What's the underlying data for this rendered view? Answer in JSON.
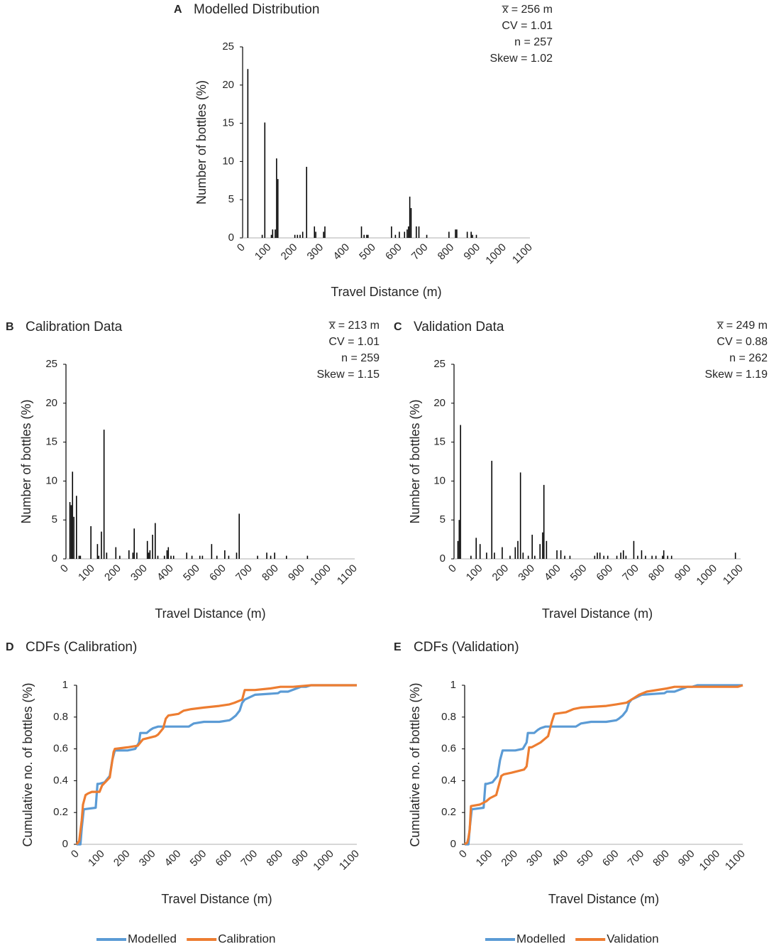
{
  "chart_data": [
    {
      "id": "A",
      "type": "bar",
      "panel_letter": "A",
      "title": "Modelled Distribution",
      "stats": [
        "x̅ = 256 m",
        "CV = 1.01",
        "n = 257",
        "Skew = 1.02"
      ],
      "xlabel": "Travel Distance (m)",
      "ylabel": "Number of bottles (%)",
      "xlim": [
        0,
        1100
      ],
      "ylim": [
        0,
        25
      ],
      "xticks": [
        "0",
        "100",
        "200",
        "300",
        "400",
        "500",
        "600",
        "700",
        "800",
        "900",
        "1000",
        "1100"
      ],
      "yticks": [
        "0",
        "5",
        "10",
        "15",
        "20",
        "25"
      ],
      "bars": [
        {
          "x": 20,
          "y": 22.1
        },
        {
          "x": 75,
          "y": 0.4
        },
        {
          "x": 85,
          "y": 15.1
        },
        {
          "x": 110,
          "y": 0.4
        },
        {
          "x": 115,
          "y": 1.1
        },
        {
          "x": 125,
          "y": 1.1
        },
        {
          "x": 130,
          "y": 10.4
        },
        {
          "x": 135,
          "y": 7.7
        },
        {
          "x": 200,
          "y": 0.4
        },
        {
          "x": 210,
          "y": 0.4
        },
        {
          "x": 220,
          "y": 0.4
        },
        {
          "x": 230,
          "y": 0.8
        },
        {
          "x": 245,
          "y": 9.3
        },
        {
          "x": 275,
          "y": 1.5
        },
        {
          "x": 280,
          "y": 0.8
        },
        {
          "x": 310,
          "y": 0.8
        },
        {
          "x": 315,
          "y": 1.5
        },
        {
          "x": 455,
          "y": 1.5
        },
        {
          "x": 465,
          "y": 0.4
        },
        {
          "x": 475,
          "y": 0.4
        },
        {
          "x": 480,
          "y": 0.4
        },
        {
          "x": 570,
          "y": 1.5
        },
        {
          "x": 585,
          "y": 0.4
        },
        {
          "x": 600,
          "y": 0.8
        },
        {
          "x": 620,
          "y": 0.8
        },
        {
          "x": 630,
          "y": 1.1
        },
        {
          "x": 635,
          "y": 1.5
        },
        {
          "x": 640,
          "y": 5.4
        },
        {
          "x": 645,
          "y": 3.9
        },
        {
          "x": 665,
          "y": 1.5
        },
        {
          "x": 675,
          "y": 1.5
        },
        {
          "x": 705,
          "y": 0.4
        },
        {
          "x": 790,
          "y": 0.8
        },
        {
          "x": 815,
          "y": 1.1
        },
        {
          "x": 820,
          "y": 1.1
        },
        {
          "x": 860,
          "y": 0.8
        },
        {
          "x": 875,
          "y": 0.8
        },
        {
          "x": 880,
          "y": 0.4
        },
        {
          "x": 895,
          "y": 0.4
        }
      ]
    },
    {
      "id": "B",
      "type": "bar",
      "panel_letter": "B",
      "title": "Calibration Data",
      "stats": [
        "x̅ = 213 m",
        "CV = 1.01",
        "n = 259",
        "Skew = 1.15"
      ],
      "xlabel": "Travel Distance (m)",
      "ylabel": "Number of bottles (%)",
      "xlim": [
        0,
        1100
      ],
      "ylim": [
        0,
        25
      ],
      "xticks": [
        "0",
        "100",
        "200",
        "300",
        "400",
        "500",
        "600",
        "700",
        "800",
        "900",
        "1000",
        "1100"
      ],
      "yticks": [
        "0",
        "5",
        "10",
        "15",
        "20",
        "25"
      ],
      "bars": [
        {
          "x": 15,
          "y": 7.3
        },
        {
          "x": 20,
          "y": 6.9
        },
        {
          "x": 25,
          "y": 11.2
        },
        {
          "x": 30,
          "y": 5.4
        },
        {
          "x": 40,
          "y": 8.1
        },
        {
          "x": 50,
          "y": 0.4
        },
        {
          "x": 55,
          "y": 0.4
        },
        {
          "x": 95,
          "y": 4.2
        },
        {
          "x": 120,
          "y": 1.9
        },
        {
          "x": 125,
          "y": 0.4
        },
        {
          "x": 135,
          "y": 3.5
        },
        {
          "x": 145,
          "y": 16.6
        },
        {
          "x": 155,
          "y": 0.8
        },
        {
          "x": 190,
          "y": 1.5
        },
        {
          "x": 205,
          "y": 0.4
        },
        {
          "x": 240,
          "y": 1.1
        },
        {
          "x": 255,
          "y": 0.8
        },
        {
          "x": 260,
          "y": 3.9
        },
        {
          "x": 270,
          "y": 0.8
        },
        {
          "x": 310,
          "y": 2.3
        },
        {
          "x": 315,
          "y": 0.8
        },
        {
          "x": 320,
          "y": 1.1
        },
        {
          "x": 330,
          "y": 3.1
        },
        {
          "x": 340,
          "y": 4.6
        },
        {
          "x": 350,
          "y": 0.4
        },
        {
          "x": 375,
          "y": 0.4
        },
        {
          "x": 385,
          "y": 1.1
        },
        {
          "x": 390,
          "y": 1.5
        },
        {
          "x": 400,
          "y": 0.4
        },
        {
          "x": 410,
          "y": 0.4
        },
        {
          "x": 460,
          "y": 0.8
        },
        {
          "x": 480,
          "y": 0.4
        },
        {
          "x": 510,
          "y": 0.4
        },
        {
          "x": 520,
          "y": 0.4
        },
        {
          "x": 555,
          "y": 1.9
        },
        {
          "x": 575,
          "y": 0.4
        },
        {
          "x": 605,
          "y": 1.1
        },
        {
          "x": 620,
          "y": 0.4
        },
        {
          "x": 650,
          "y": 0.8
        },
        {
          "x": 660,
          "y": 5.8
        },
        {
          "x": 730,
          "y": 0.4
        },
        {
          "x": 765,
          "y": 0.8
        },
        {
          "x": 780,
          "y": 0.4
        },
        {
          "x": 795,
          "y": 0.8
        },
        {
          "x": 840,
          "y": 0.4
        },
        {
          "x": 920,
          "y": 0.4
        }
      ]
    },
    {
      "id": "C",
      "type": "bar",
      "panel_letter": "C",
      "title": "Validation Data",
      "stats": [
        "x̅ = 249 m",
        "CV = 0.88",
        "n = 262",
        "Skew = 1.19"
      ],
      "xlabel": "Travel Distance (m)",
      "ylabel": "Number of bottles (%)",
      "xlim": [
        0,
        1100
      ],
      "ylim": [
        0,
        25
      ],
      "xticks": [
        "0",
        "100",
        "200",
        "300",
        "400",
        "500",
        "600",
        "700",
        "800",
        "900",
        "1000",
        "1100"
      ],
      "yticks": [
        "0",
        "5",
        "10",
        "15",
        "20",
        "25"
      ],
      "bars": [
        {
          "x": 15,
          "y": 2.3
        },
        {
          "x": 20,
          "y": 5.0
        },
        {
          "x": 25,
          "y": 17.2
        },
        {
          "x": 65,
          "y": 0.4
        },
        {
          "x": 85,
          "y": 2.7
        },
        {
          "x": 100,
          "y": 1.9
        },
        {
          "x": 125,
          "y": 0.8
        },
        {
          "x": 145,
          "y": 12.6
        },
        {
          "x": 155,
          "y": 0.8
        },
        {
          "x": 185,
          "y": 1.5
        },
        {
          "x": 215,
          "y": 0.4
        },
        {
          "x": 235,
          "y": 1.5
        },
        {
          "x": 245,
          "y": 2.3
        },
        {
          "x": 255,
          "y": 11.1
        },
        {
          "x": 265,
          "y": 0.8
        },
        {
          "x": 285,
          "y": 0.4
        },
        {
          "x": 300,
          "y": 3.1
        },
        {
          "x": 310,
          "y": 0.4
        },
        {
          "x": 330,
          "y": 1.9
        },
        {
          "x": 340,
          "y": 3.4
        },
        {
          "x": 345,
          "y": 9.5
        },
        {
          "x": 355,
          "y": 2.3
        },
        {
          "x": 395,
          "y": 1.1
        },
        {
          "x": 410,
          "y": 1.1
        },
        {
          "x": 425,
          "y": 0.4
        },
        {
          "x": 445,
          "y": 0.4
        },
        {
          "x": 540,
          "y": 0.4
        },
        {
          "x": 550,
          "y": 0.8
        },
        {
          "x": 560,
          "y": 0.8
        },
        {
          "x": 575,
          "y": 0.4
        },
        {
          "x": 590,
          "y": 0.4
        },
        {
          "x": 625,
          "y": 0.4
        },
        {
          "x": 640,
          "y": 0.8
        },
        {
          "x": 650,
          "y": 1.1
        },
        {
          "x": 660,
          "y": 0.4
        },
        {
          "x": 690,
          "y": 2.3
        },
        {
          "x": 705,
          "y": 0.4
        },
        {
          "x": 720,
          "y": 1.1
        },
        {
          "x": 735,
          "y": 0.4
        },
        {
          "x": 760,
          "y": 0.4
        },
        {
          "x": 775,
          "y": 0.4
        },
        {
          "x": 800,
          "y": 0.4
        },
        {
          "x": 805,
          "y": 1.1
        },
        {
          "x": 820,
          "y": 0.4
        },
        {
          "x": 835,
          "y": 0.4
        },
        {
          "x": 1080,
          "y": 0.8
        }
      ]
    },
    {
      "id": "D",
      "type": "line",
      "panel_letter": "D",
      "title": "CDFs (Calibration)",
      "xlabel": "Travel Distance (m)",
      "ylabel": "Cumulative no. of bottles (%)",
      "xlim": [
        0,
        1100
      ],
      "ylim": [
        0,
        1
      ],
      "xticks": [
        "0",
        "100",
        "200",
        "300",
        "400",
        "500",
        "600",
        "700",
        "800",
        "900",
        "1000",
        "1100"
      ],
      "yticks": [
        "0",
        "0.2",
        "0.4",
        "0.6",
        "0.8",
        "1"
      ],
      "series": [
        {
          "name": "Modelled",
          "color": "#5b9bd5",
          "x": [
            0,
            15,
            20,
            28,
            75,
            82,
            88,
            110,
            130,
            140,
            150,
            200,
            230,
            245,
            250,
            275,
            290,
            300,
            320,
            350,
            440,
            460,
            500,
            560,
            600,
            610,
            625,
            640,
            650,
            660,
            700,
            790,
            800,
            830,
            880,
            900,
            920,
            1100
          ],
          "y": [
            0,
            0,
            0.1,
            0.22,
            0.23,
            0.38,
            0.38,
            0.39,
            0.43,
            0.53,
            0.59,
            0.59,
            0.6,
            0.64,
            0.7,
            0.7,
            0.72,
            0.73,
            0.74,
            0.74,
            0.74,
            0.76,
            0.77,
            0.77,
            0.78,
            0.79,
            0.81,
            0.84,
            0.89,
            0.91,
            0.94,
            0.95,
            0.96,
            0.96,
            0.99,
            0.99,
            1.0,
            1.0
          ]
        },
        {
          "name": "Calibration",
          "color": "#ed7d31",
          "x": [
            0,
            10,
            20,
            25,
            35,
            45,
            60,
            90,
            100,
            130,
            145,
            150,
            200,
            240,
            260,
            310,
            320,
            340,
            350,
            360,
            400,
            420,
            450,
            500,
            560,
            600,
            620,
            650,
            660,
            700,
            760,
            800,
            850,
            920,
            1000,
            1100
          ],
          "y": [
            0,
            0.02,
            0.15,
            0.25,
            0.31,
            0.32,
            0.33,
            0.33,
            0.37,
            0.42,
            0.58,
            0.6,
            0.61,
            0.62,
            0.66,
            0.68,
            0.69,
            0.73,
            0.79,
            0.81,
            0.82,
            0.84,
            0.85,
            0.86,
            0.87,
            0.88,
            0.89,
            0.91,
            0.97,
            0.97,
            0.98,
            0.99,
            0.99,
            1.0,
            1.0,
            1.0
          ]
        }
      ],
      "legend": [
        "Modelled",
        "Calibration"
      ],
      "legend_position": "bottom"
    },
    {
      "id": "E",
      "type": "line",
      "panel_letter": "E",
      "title": "CDFs (Validation)",
      "xlabel": "Travel Distance (m)",
      "ylabel": "Cumulative no. of bottles (%)",
      "xlim": [
        0,
        1100
      ],
      "ylim": [
        0,
        1
      ],
      "xticks": [
        "0",
        "100",
        "200",
        "300",
        "400",
        "500",
        "600",
        "700",
        "800",
        "900",
        "1000",
        "1100"
      ],
      "yticks": [
        "0",
        "0.2",
        "0.4",
        "0.6",
        "0.8",
        "1"
      ],
      "series": [
        {
          "name": "Modelled",
          "color": "#5b9bd5",
          "x": [
            0,
            15,
            20,
            28,
            75,
            82,
            88,
            110,
            130,
            140,
            150,
            200,
            230,
            245,
            250,
            275,
            290,
            300,
            320,
            350,
            440,
            460,
            500,
            560,
            600,
            610,
            625,
            640,
            650,
            660,
            700,
            790,
            800,
            830,
            880,
            900,
            920,
            1100
          ],
          "y": [
            0,
            0,
            0.1,
            0.22,
            0.23,
            0.38,
            0.38,
            0.39,
            0.43,
            0.53,
            0.59,
            0.59,
            0.6,
            0.64,
            0.7,
            0.7,
            0.72,
            0.73,
            0.74,
            0.74,
            0.74,
            0.76,
            0.77,
            0.77,
            0.78,
            0.79,
            0.81,
            0.84,
            0.89,
            0.91,
            0.94,
            0.95,
            0.96,
            0.96,
            0.99,
            0.99,
            1.0,
            1.0
          ]
        },
        {
          "name": "Validation",
          "color": "#ed7d31",
          "x": [
            0,
            10,
            15,
            20,
            25,
            60,
            85,
            100,
            125,
            145,
            155,
            185,
            235,
            245,
            255,
            265,
            300,
            330,
            345,
            355,
            400,
            430,
            460,
            560,
            600,
            640,
            660,
            690,
            720,
            800,
            830,
            900,
            1000,
            1080,
            1100
          ],
          "y": [
            0,
            0.01,
            0.04,
            0.09,
            0.24,
            0.25,
            0.27,
            0.29,
            0.31,
            0.43,
            0.44,
            0.45,
            0.47,
            0.49,
            0.61,
            0.61,
            0.64,
            0.68,
            0.77,
            0.82,
            0.83,
            0.85,
            0.86,
            0.87,
            0.88,
            0.89,
            0.91,
            0.94,
            0.96,
            0.98,
            0.99,
            0.99,
            0.99,
            0.99,
            1.0
          ]
        }
      ],
      "legend": [
        "Modelled",
        "Validation"
      ],
      "legend_position": "bottom"
    }
  ]
}
